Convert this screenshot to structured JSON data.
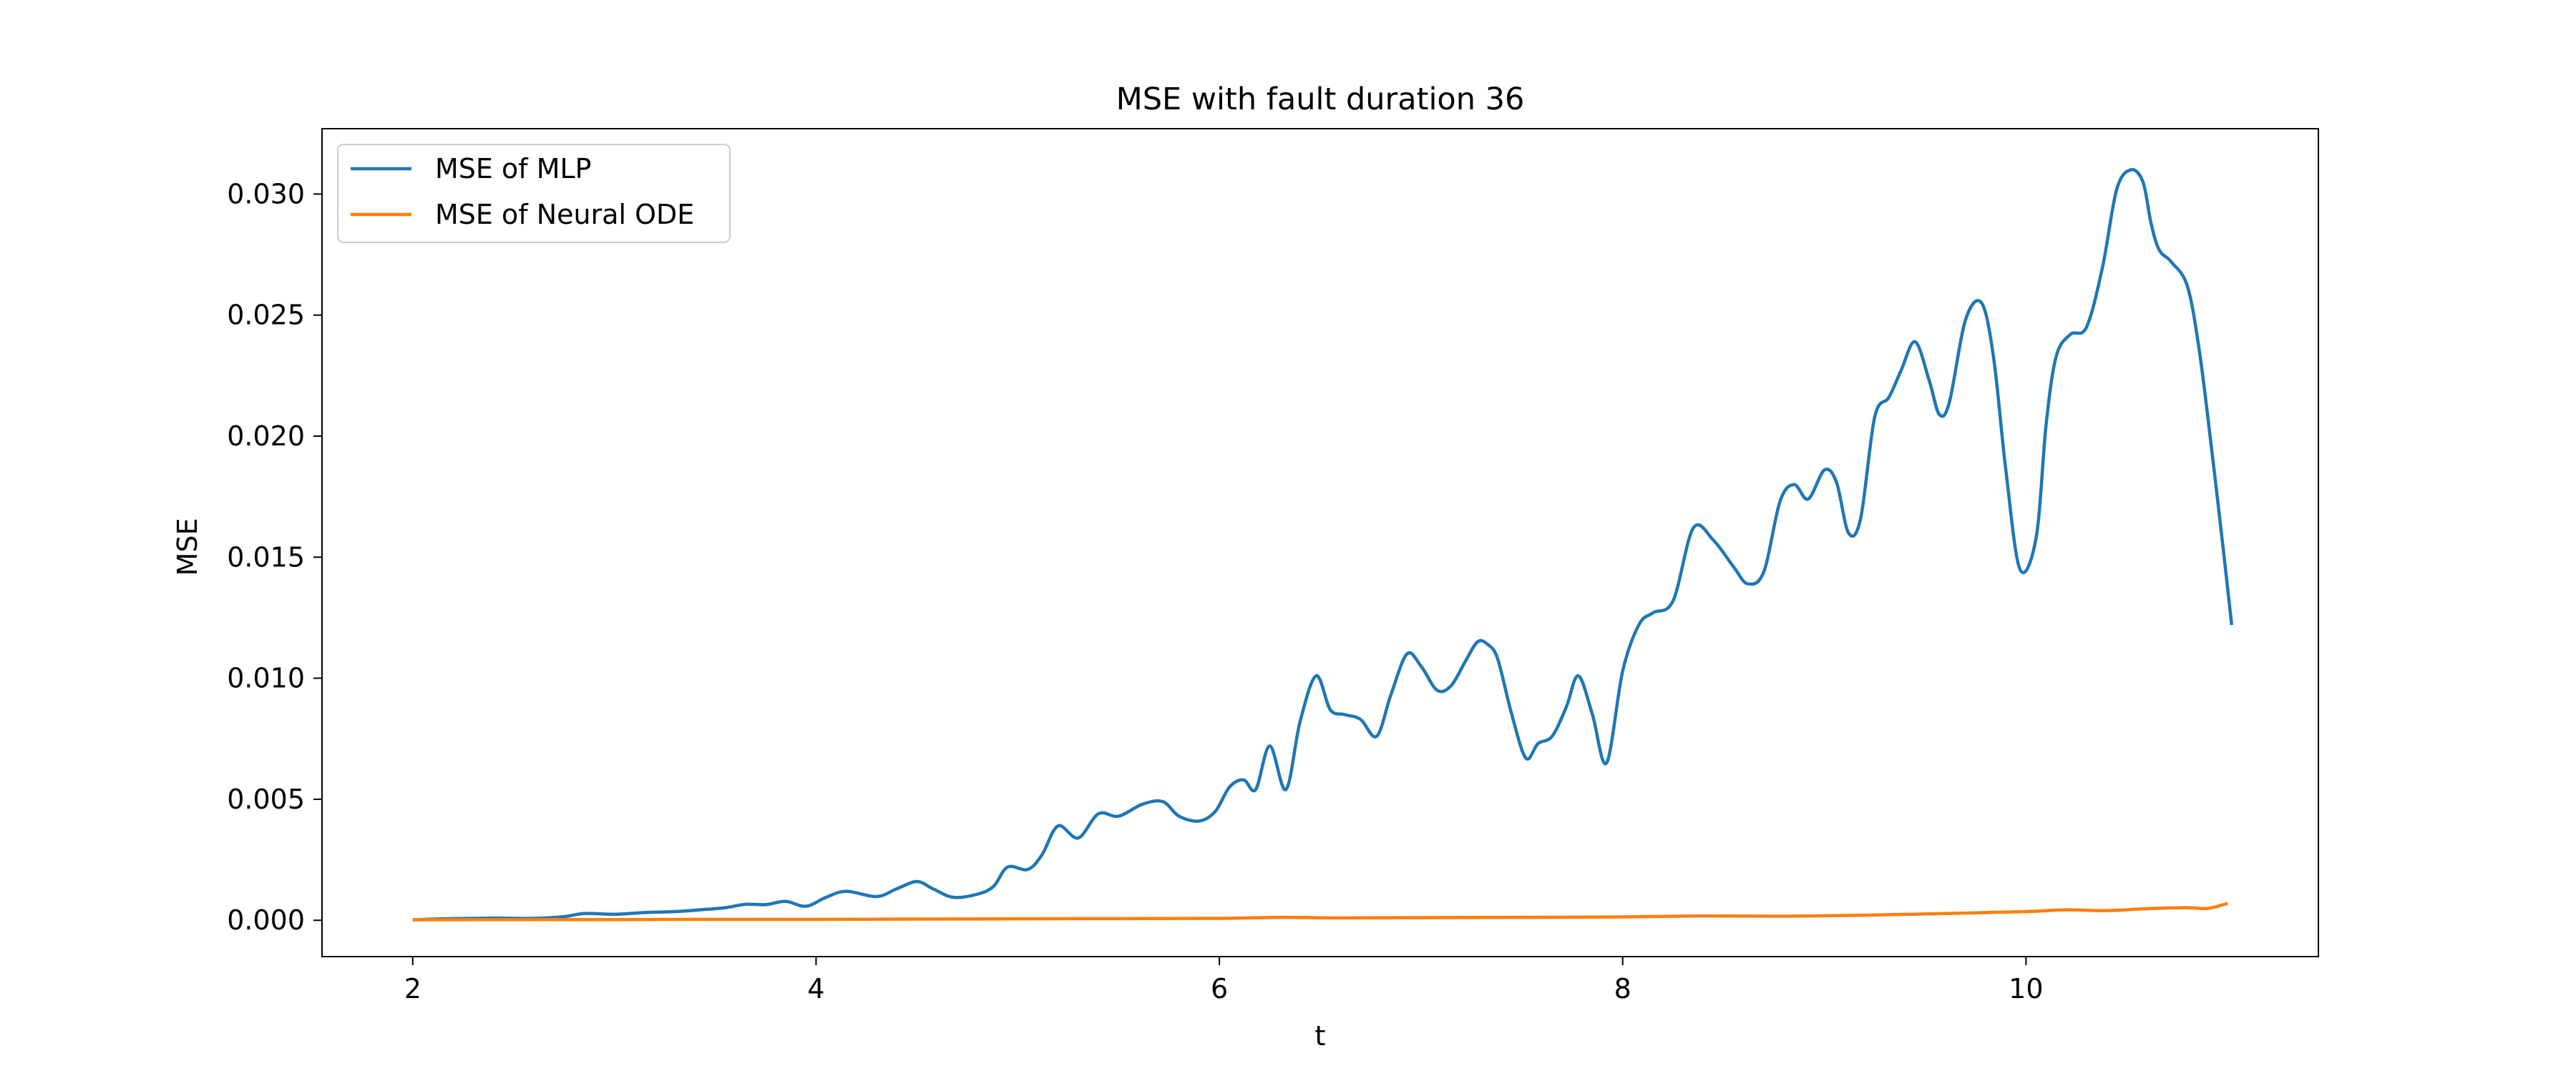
{
  "chart_data": {
    "type": "line",
    "title": "MSE with fault duration 36",
    "xlabel": "t",
    "ylabel": "MSE",
    "xlim": [
      1.55,
      11.45
    ],
    "ylim": [
      -0.0015,
      0.0327
    ],
    "xticks": [
      2,
      4,
      6,
      8,
      10
    ],
    "xtick_labels": [
      "2",
      "4",
      "6",
      "8",
      "10"
    ],
    "yticks": [
      0.0,
      0.005,
      0.01,
      0.015,
      0.02,
      0.025,
      0.03
    ],
    "ytick_labels": [
      "0.000",
      "0.005",
      "0.010",
      "0.015",
      "0.020",
      "0.025",
      "0.030"
    ],
    "grid": false,
    "legend": {
      "position": "top-left"
    },
    "series": [
      {
        "name": "MSE of MLP",
        "color": "#1f77b4",
        "x": [
          2.0,
          2.2,
          2.4,
          2.6,
          2.75,
          2.85,
          3.0,
          3.15,
          3.3,
          3.45,
          3.55,
          3.65,
          3.75,
          3.85,
          3.95,
          4.05,
          4.15,
          4.3,
          4.4,
          4.5,
          4.58,
          4.68,
          4.8,
          4.88,
          4.95,
          5.05,
          5.12,
          5.2,
          5.3,
          5.4,
          5.5,
          5.62,
          5.72,
          5.8,
          5.9,
          5.98,
          6.05,
          6.12,
          6.18,
          6.25,
          6.33,
          6.4,
          6.48,
          6.55,
          6.62,
          6.7,
          6.78,
          6.85,
          6.93,
          7.0,
          7.08,
          7.15,
          7.22,
          7.28,
          7.33,
          7.38,
          7.45,
          7.52,
          7.58,
          7.65,
          7.72,
          7.78,
          7.85,
          7.92,
          8.0,
          8.08,
          8.15,
          8.25,
          8.35,
          8.45,
          8.55,
          8.62,
          8.7,
          8.78,
          8.85,
          8.92,
          9.0,
          9.06,
          9.12,
          9.18,
          9.25,
          9.32,
          9.38,
          9.45,
          9.52,
          9.57,
          9.62,
          9.7,
          9.78,
          9.84,
          9.9,
          9.97,
          10.05,
          10.1,
          10.15,
          10.22,
          10.3,
          10.38,
          10.45,
          10.52,
          10.58,
          10.62,
          10.66,
          10.72,
          10.8,
          10.86,
          10.92,
          10.98,
          11.02
        ],
        "values": [
          2e-05,
          7e-05,
          9e-05,
          8e-05,
          0.00015,
          0.00028,
          0.00025,
          0.00032,
          0.00036,
          0.00045,
          0.00052,
          0.00066,
          0.00065,
          0.00078,
          0.00058,
          0.00095,
          0.0012,
          0.00098,
          0.0013,
          0.0016,
          0.0013,
          0.00095,
          0.00108,
          0.0014,
          0.0022,
          0.0021,
          0.0027,
          0.0039,
          0.0034,
          0.0044,
          0.0043,
          0.0048,
          0.0049,
          0.0043,
          0.0041,
          0.0045,
          0.0055,
          0.0058,
          0.0054,
          0.0072,
          0.0054,
          0.0082,
          0.0101,
          0.0087,
          0.0085,
          0.0083,
          0.0076,
          0.0093,
          0.011,
          0.0105,
          0.0095,
          0.0097,
          0.0107,
          0.0115,
          0.0114,
          0.0108,
          0.0085,
          0.0067,
          0.0073,
          0.0076,
          0.0088,
          0.0101,
          0.0085,
          0.0065,
          0.0103,
          0.0122,
          0.0127,
          0.0132,
          0.0162,
          0.0157,
          0.0146,
          0.0139,
          0.0144,
          0.0173,
          0.018,
          0.0174,
          0.0186,
          0.0181,
          0.016,
          0.0166,
          0.0208,
          0.0216,
          0.0227,
          0.0239,
          0.0223,
          0.0209,
          0.0214,
          0.0248,
          0.0255,
          0.0232,
          0.0186,
          0.0145,
          0.0158,
          0.0205,
          0.0233,
          0.0242,
          0.0245,
          0.027,
          0.0302,
          0.031,
          0.0305,
          0.0288,
          0.0277,
          0.0272,
          0.0262,
          0.0235,
          0.0195,
          0.0152,
          0.0122
        ]
      },
      {
        "name": "MSE of Neural ODE",
        "color": "#ff7f0e",
        "x": [
          2.0,
          2.5,
          3.0,
          3.5,
          4.0,
          4.5,
          5.0,
          5.5,
          6.0,
          6.3,
          6.6,
          7.0,
          7.5,
          8.0,
          8.4,
          8.8,
          9.2,
          9.6,
          10.0,
          10.2,
          10.4,
          10.6,
          10.8,
          10.9,
          11.0
        ],
        "values": [
          2e-05,
          3e-05,
          3e-05,
          4e-05,
          4e-05,
          5e-05,
          6e-05,
          7e-05,
          8e-05,
          0.00012,
          0.0001,
          0.00011,
          0.00012,
          0.00014,
          0.00018,
          0.00017,
          0.00021,
          0.00028,
          0.00036,
          0.00043,
          0.0004,
          0.00048,
          0.00052,
          0.00049,
          0.0007
        ]
      }
    ]
  }
}
